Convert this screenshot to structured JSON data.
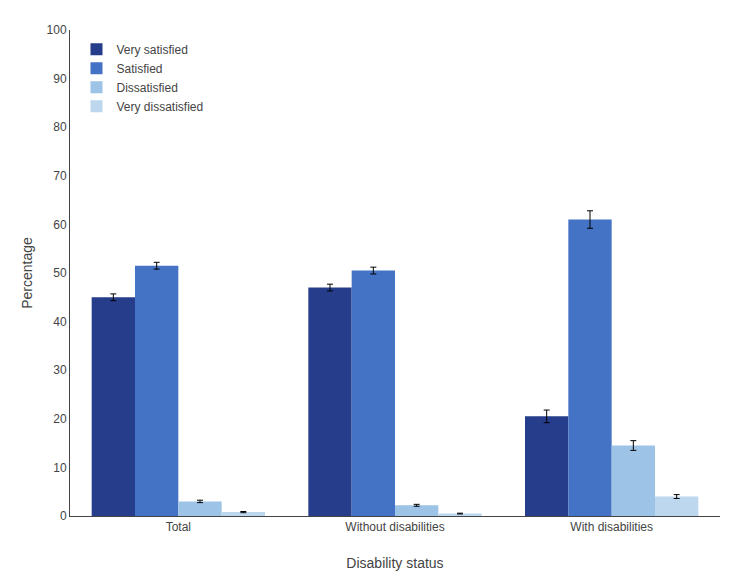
{
  "chart_data": {
    "type": "bar",
    "categories": [
      "Total",
      "Without disabilities",
      "With disabilities"
    ],
    "series": [
      {
        "name": "Very satisfied",
        "color": "#253D8A",
        "values": [
          45.0,
          47.0,
          20.5
        ],
        "errors": [
          0.7,
          0.7,
          1.3
        ]
      },
      {
        "name": "Satisfied",
        "color": "#4472C4",
        "values": [
          51.5,
          50.5,
          61.0
        ],
        "errors": [
          0.7,
          0.7,
          1.8
        ]
      },
      {
        "name": "Dissatisfied",
        "color": "#9DC3E6",
        "values": [
          3.0,
          2.2,
          14.5
        ],
        "errors": [
          0.25,
          0.2,
          1.0
        ]
      },
      {
        "name": "Very dissatisfied",
        "color": "#BDD7EE",
        "values": [
          0.8,
          0.5,
          4.0
        ],
        "errors": [
          0.12,
          0.08,
          0.4
        ]
      }
    ],
    "xlabel": "Disability status",
    "ylabel": "Percentage",
    "ylim": [
      0,
      100
    ],
    "yticks": [
      0,
      10,
      20,
      30,
      40,
      50,
      60,
      70,
      80,
      90,
      100
    ],
    "grid": false,
    "legend": "upper left"
  }
}
